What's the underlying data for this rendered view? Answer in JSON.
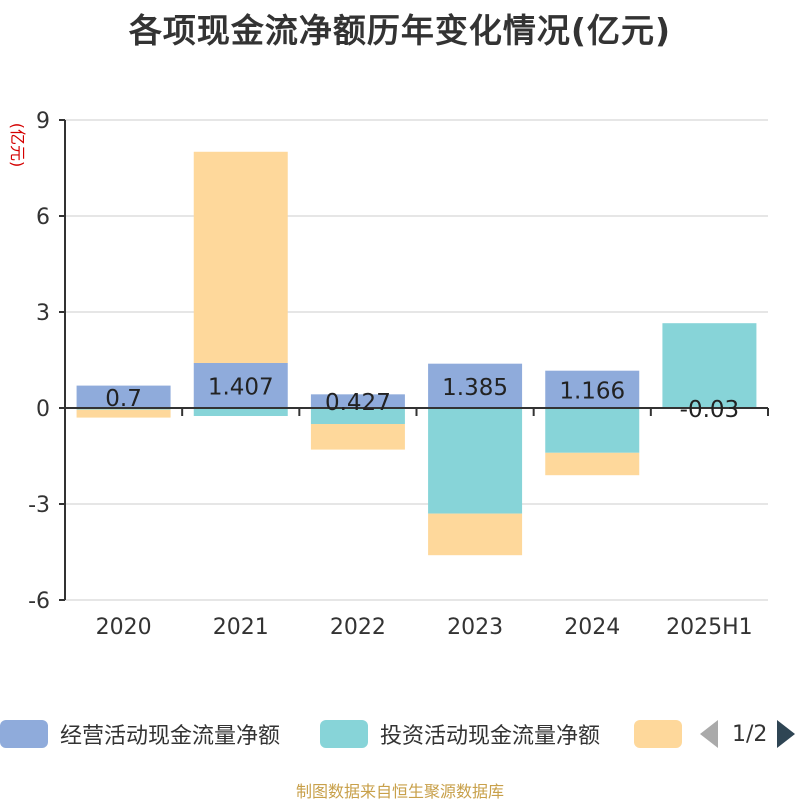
{
  "title": "各项现金流净额历年变化情况(亿元)",
  "source_note": "制图数据来自恒生聚源数据库",
  "legend_pager": "1/2",
  "chart_data": {
    "type": "bar",
    "stacked": true,
    "ylabel": "(亿元)",
    "ylim": [
      -6,
      9
    ],
    "yticks": [
      -6,
      -3,
      0,
      3,
      6,
      9
    ],
    "categories": [
      "2020",
      "2021",
      "2022",
      "2023",
      "2024",
      "2025H1"
    ],
    "grid": true,
    "legend_position": "bottom",
    "series": [
      {
        "name": "经营活动现金流量净额",
        "color": "#8fabdb",
        "values": [
          0.7,
          1.407,
          0.427,
          1.385,
          1.166,
          -0.03
        ],
        "data_labels": [
          "0.7",
          "1.407",
          "0.427",
          "1.385",
          "1.166",
          "-0.03"
        ]
      },
      {
        "name": "投资活动现金流量净额",
        "color": "#87d4d8",
        "values": [
          -0.05,
          -0.25,
          -0.5,
          -3.3,
          -1.4,
          2.65
        ]
      },
      {
        "name": "",
        "color": "#fed89b",
        "values": [
          -0.25,
          6.6,
          -0.8,
          -1.3,
          -0.7,
          0
        ]
      }
    ]
  }
}
